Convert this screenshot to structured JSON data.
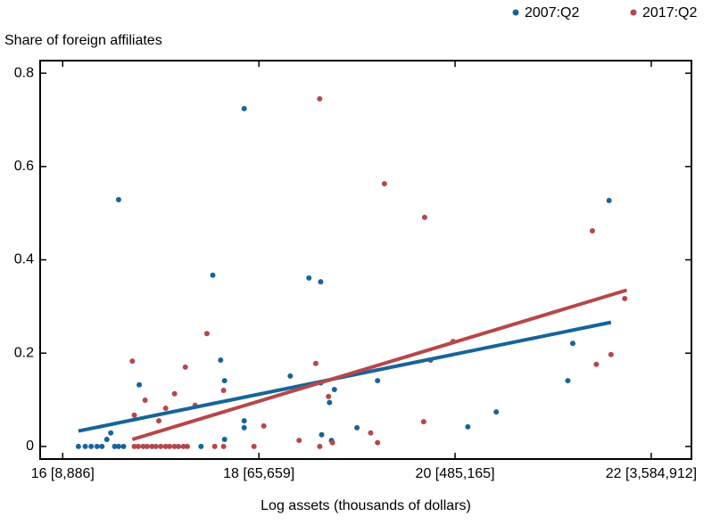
{
  "chart_data": {
    "type": "scatter",
    "y_label": "Share of foreign affiliates",
    "x_label": "Log assets (thousands of dollars)",
    "xlim": [
      15.77,
      22.41
    ],
    "ylim": [
      -0.027,
      0.827
    ],
    "xticks": [
      {
        "value": 16,
        "label": "16 [8,886]"
      },
      {
        "value": 18,
        "label": "18 [65,659]"
      },
      {
        "value": 20,
        "label": "20 [485,165]"
      },
      {
        "value": 22,
        "label": "22 [3,584,912]"
      }
    ],
    "yticks": [
      0,
      0.2,
      0.4,
      0.6,
      0.8
    ],
    "series": [
      {
        "name": "2007:Q2",
        "color": "#17649a",
        "x": [
          16.16,
          16.23,
          16.29,
          16.35,
          16.4,
          16.45,
          16.49,
          16.53,
          16.57,
          16.62,
          16.57,
          16.78,
          17.41,
          17.53,
          17.61,
          17.65,
          17.65,
          17.85,
          17.85,
          17.85,
          18.32,
          18.51,
          18.63,
          18.63,
          18.64,
          18.72,
          18.74,
          18.77,
          19.0,
          19.21,
          19.75,
          20.13,
          20.42,
          21.15,
          21.2,
          21.57
        ],
        "y": [
          0,
          0,
          0,
          0,
          0,
          0.015,
          0.029,
          0,
          0,
          0,
          0.529,
          0.132,
          0,
          0.367,
          0.185,
          0.141,
          0.015,
          0.055,
          0.724,
          0.04,
          0.151,
          0.361,
          0.353,
          0.136,
          0.025,
          0.094,
          0.013,
          0.122,
          0.04,
          0.141,
          0.185,
          0.042,
          0.074,
          0.141,
          0.221,
          0.527
        ],
        "trend_x": [
          16.16,
          21.59
        ],
        "trend_y": [
          0.033,
          0.266
        ]
      },
      {
        "name": "2017:Q2",
        "color": "#b5474b",
        "x": [
          16.71,
          16.73,
          16.84,
          16.98,
          17.05,
          17.14,
          17.25,
          17.35,
          17.47,
          17.64,
          16.73,
          16.77,
          16.82,
          16.86,
          16.91,
          16.95,
          17.0,
          17.05,
          17.09,
          17.14,
          17.18,
          17.23,
          17.27,
          17.55,
          17.64,
          17.95,
          18.62,
          18.05,
          18.41,
          18.58,
          18.62,
          18.71,
          18.75,
          19.14,
          19.21,
          19.28,
          19.68,
          19.69,
          19.75,
          19.98,
          21.4,
          21.44,
          21.59,
          21.73
        ],
        "y": [
          0.183,
          0.067,
          0.099,
          0.055,
          0.082,
          0.113,
          0.17,
          0.088,
          0.242,
          0.12,
          0,
          0,
          0,
          0,
          0,
          0,
          0,
          0,
          0,
          0,
          0,
          0,
          0,
          0,
          0,
          0,
          0,
          0.044,
          0.013,
          0.178,
          0.745,
          0.107,
          0.008,
          0.029,
          0.008,
          0.563,
          0.053,
          0.491,
          0.185,
          0.225,
          0.462,
          0.176,
          0.197,
          0.317
        ],
        "trend_x": [
          16.71,
          21.75
        ],
        "trend_y": [
          0.015,
          0.335
        ]
      }
    ]
  }
}
